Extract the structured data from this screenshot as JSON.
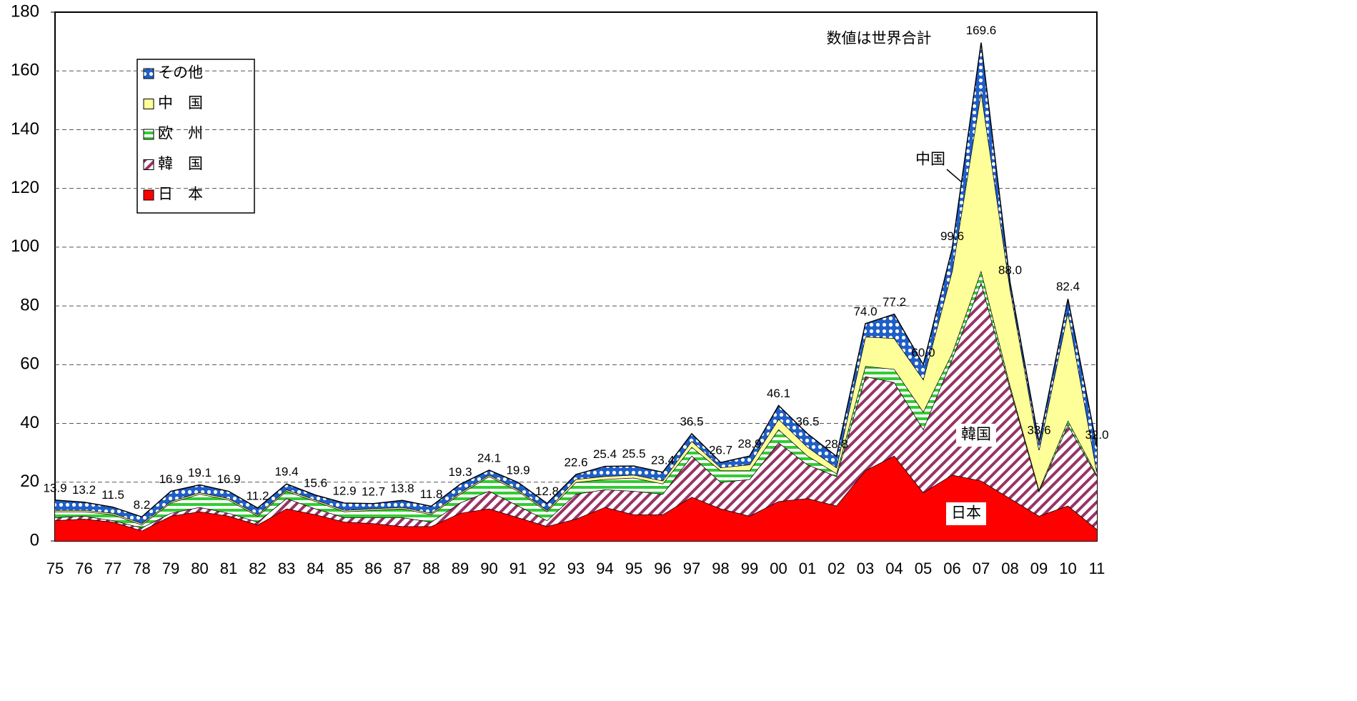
{
  "chart_data": {
    "type": "stacked-area",
    "categories": [
      "75",
      "76",
      "77",
      "78",
      "79",
      "80",
      "81",
      "82",
      "83",
      "84",
      "85",
      "86",
      "87",
      "88",
      "89",
      "90",
      "91",
      "92",
      "93",
      "94",
      "95",
      "96",
      "97",
      "98",
      "99",
      "00",
      "01",
      "02",
      "03",
      "04",
      "05",
      "06",
      "07",
      "08",
      "09",
      "10",
      "11"
    ],
    "series": [
      {
        "name": "日　本",
        "color": "#ff0000",
        "pattern": "solid",
        "values": [
          7,
          7.5,
          6.5,
          3.5,
          8.5,
          10,
          8.5,
          5.5,
          11,
          9,
          6.5,
          6,
          5,
          5,
          9.5,
          11,
          8,
          5,
          7.5,
          11.5,
          9,
          9,
          15,
          11,
          8.5,
          13.5,
          14.5,
          12,
          24,
          29,
          16.5,
          22.5,
          20.5,
          14.5,
          8.5,
          12,
          4
        ]
      },
      {
        "name": "韓　国",
        "color": "#993366",
        "pattern": "diagonal",
        "values": [
          1,
          1,
          0.5,
          1,
          1,
          1.5,
          1,
          1,
          3.5,
          2,
          1.5,
          2,
          3,
          1.5,
          3.5,
          6,
          4,
          2,
          8.5,
          6,
          8,
          7,
          14,
          9,
          12.5,
          20,
          11.5,
          10,
          32,
          25,
          21.5,
          39.5,
          67.5,
          37.5,
          8.5,
          27.5,
          18
        ]
      },
      {
        "name": "欧　州",
        "color": "#33cc33",
        "pattern": "hstripes",
        "values": [
          2,
          1.5,
          2,
          1,
          3.5,
          4.5,
          4.5,
          2,
          2.5,
          2.5,
          2,
          2.5,
          3,
          2.5,
          3,
          5,
          5,
          3,
          4,
          3.5,
          4.5,
          3.5,
          3,
          4,
          3,
          4.5,
          3,
          1,
          3.5,
          4.5,
          6,
          2,
          4,
          1,
          0.5,
          1.5,
          0.5
        ]
      },
      {
        "name": "中　国",
        "color": "#ffff99",
        "pattern": "solid",
        "values": [
          0.5,
          0.5,
          0.5,
          0.5,
          0.5,
          0.5,
          0.5,
          0.5,
          0.5,
          0.5,
          0.5,
          0.5,
          0.5,
          0.5,
          0.5,
          0.5,
          0.5,
          0.5,
          1,
          1,
          1,
          1,
          2,
          1,
          2,
          3.5,
          3,
          2,
          10,
          10.5,
          11,
          28,
          61,
          33,
          13.5,
          37,
          1
        ]
      },
      {
        "name": "その他",
        "color": "#1f5fc8",
        "pattern": "dots",
        "values": [
          3.4,
          2.7,
          2.0,
          2.2,
          3.4,
          2.6,
          2.4,
          2.2,
          1.9,
          1.6,
          2.4,
          1.7,
          2.3,
          2.3,
          2.8,
          1.6,
          2.4,
          2.3,
          1.6,
          3.4,
          3.0,
          2.9,
          2.5,
          1.7,
          2.9,
          4.6,
          4.5,
          3.8,
          4.5,
          8.2,
          5.0,
          7.6,
          16.6,
          2.0,
          2.6,
          4.4,
          8.5
        ]
      }
    ],
    "total_labels": [
      "13.9",
      "13.2",
      "11.5",
      "8.2",
      "16.9",
      "19.1",
      "16.9",
      "11.2",
      "19.4",
      "15.6",
      "12.9",
      "12.7",
      "13.8",
      "11.8",
      "19.3",
      "24.1",
      "19.9",
      "12.8",
      "22.6",
      "25.4",
      "25.5",
      "23.4",
      "36.5",
      "26.7",
      "28.9",
      "46.1",
      "36.5",
      "28.8",
      "74.0",
      "77.2",
      "60.0",
      "99.6",
      "169.6",
      "88.0",
      "33.6",
      "82.4",
      "32.0"
    ],
    "ylim": [
      0,
      180
    ],
    "yticks": [
      0,
      20,
      40,
      60,
      80,
      100,
      120,
      140,
      160,
      180
    ],
    "grid": true,
    "annotations": [
      "数値は世界合計",
      "中国",
      "韓国",
      "日本"
    ]
  }
}
